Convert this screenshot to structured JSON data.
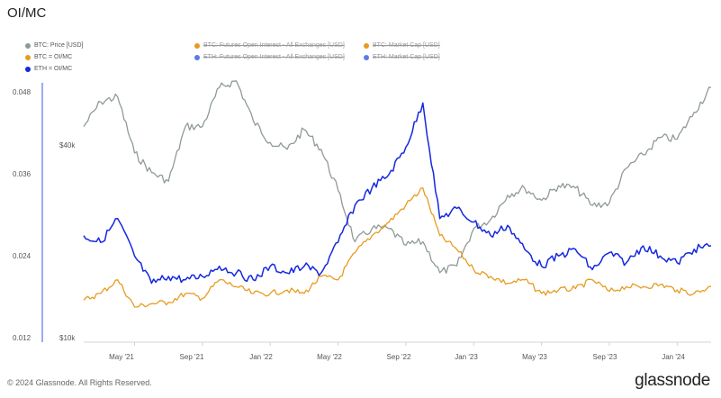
{
  "title": "OI/MC",
  "legend": [
    {
      "label": "BTC: Price [USD]",
      "color": "#8f9a98",
      "active": true
    },
    {
      "label": "BTC = OI/MC",
      "color": "#e69c1e",
      "active": true
    },
    {
      "label": "ETH = OI/MC",
      "color": "#1428e0",
      "active": true
    },
    {
      "label": "BTC: Futures Open Interest - All Exchanges [USD]",
      "color": "#e69c1e",
      "active": false
    },
    {
      "label": "ETH: Futures Open Interest - All Exchanges [USD]",
      "color": "#5b7be8",
      "active": false
    },
    {
      "label": "BTC: Market Cap [USD]",
      "color": "#e69c1e",
      "active": false
    },
    {
      "label": "ETH: Market Cap [USD]",
      "color": "#5b7be8",
      "active": false
    }
  ],
  "footer": "© 2024 Glassnode. All Rights Reserved.",
  "brand": "glassnode",
  "chart_data": {
    "type": "line",
    "x_ticks": [
      "May '21",
      "Sep '21",
      "Jan '22",
      "May '22",
      "Sep '22",
      "Jan '23",
      "May '23",
      "Sep '23",
      "Jan '24"
    ],
    "left_axis": {
      "ticks": [
        "0.048",
        "0.036",
        "0.024",
        "0.012"
      ],
      "range": [
        0.012,
        0.048
      ]
    },
    "right_axis": {
      "ticks": [
        "$40k",
        "$10k"
      ],
      "scale": "log"
    },
    "x_range": [
      "2021-02",
      "2024-03"
    ],
    "series": [
      {
        "name": "BTC: Price [USD]",
        "axis": "right",
        "color": "#8f9a98",
        "points": [
          [
            "2021-02",
            46000
          ],
          [
            "2021-03",
            55000
          ],
          [
            "2021-04",
            57000
          ],
          [
            "2021-05",
            38000
          ],
          [
            "2021-06",
            33000
          ],
          [
            "2021-07",
            31000
          ],
          [
            "2021-08",
            46000
          ],
          [
            "2021-09",
            46000
          ],
          [
            "2021-10",
            61000
          ],
          [
            "2021-11",
            64000
          ],
          [
            "2021-12",
            48000
          ],
          [
            "2022-01",
            41000
          ],
          [
            "2022-02",
            39000
          ],
          [
            "2022-03",
            45000
          ],
          [
            "2022-04",
            39000
          ],
          [
            "2022-05",
            29000
          ],
          [
            "2022-06",
            20000
          ],
          [
            "2022-07",
            22000
          ],
          [
            "2022-08",
            22000
          ],
          [
            "2022-09",
            19500
          ],
          [
            "2022-10",
            20000
          ],
          [
            "2022-11",
            16000
          ],
          [
            "2022-12",
            16800
          ],
          [
            "2023-01",
            22000
          ],
          [
            "2023-02",
            23500
          ],
          [
            "2023-03",
            28000
          ],
          [
            "2023-04",
            29500
          ],
          [
            "2023-05",
            27000
          ],
          [
            "2023-06",
            30000
          ],
          [
            "2023-07",
            29500
          ],
          [
            "2023-08",
            26000
          ],
          [
            "2023-09",
            26500
          ],
          [
            "2023-10",
            34000
          ],
          [
            "2023-11",
            37500
          ],
          [
            "2023-12",
            42500
          ],
          [
            "2024-01",
            42000
          ],
          [
            "2024-02",
            51000
          ],
          [
            "2024-03",
            61000
          ]
        ]
      },
      {
        "name": "BTC = OI/MC",
        "axis": "left",
        "color": "#e69c1e",
        "points": [
          [
            "2021-02",
            0.0175
          ],
          [
            "2021-03",
            0.0185
          ],
          [
            "2021-04",
            0.0205
          ],
          [
            "2021-05",
            0.0165
          ],
          [
            "2021-06",
            0.017
          ],
          [
            "2021-07",
            0.0172
          ],
          [
            "2021-08",
            0.0185
          ],
          [
            "2021-09",
            0.0178
          ],
          [
            "2021-10",
            0.0205
          ],
          [
            "2021-11",
            0.0195
          ],
          [
            "2021-12",
            0.0185
          ],
          [
            "2022-01",
            0.0185
          ],
          [
            "2022-02",
            0.019
          ],
          [
            "2022-03",
            0.0185
          ],
          [
            "2022-04",
            0.021
          ],
          [
            "2022-05",
            0.0205
          ],
          [
            "2022-06",
            0.0245
          ],
          [
            "2022-07",
            0.027
          ],
          [
            "2022-08",
            0.029
          ],
          [
            "2022-09",
            0.0315
          ],
          [
            "2022-10",
            0.034
          ],
          [
            "2022-11",
            0.027
          ],
          [
            "2022-12",
            0.025
          ],
          [
            "2023-01",
            0.022
          ],
          [
            "2023-02",
            0.021
          ],
          [
            "2023-03",
            0.02
          ],
          [
            "2023-04",
            0.0205
          ],
          [
            "2023-05",
            0.0185
          ],
          [
            "2023-06",
            0.019
          ],
          [
            "2023-07",
            0.0192
          ],
          [
            "2023-08",
            0.0205
          ],
          [
            "2023-09",
            0.0188
          ],
          [
            "2023-10",
            0.0195
          ],
          [
            "2023-11",
            0.0195
          ],
          [
            "2023-12",
            0.0198
          ],
          [
            "2024-01",
            0.019
          ],
          [
            "2024-02",
            0.0185
          ],
          [
            "2024-03",
            0.0195
          ]
        ]
      },
      {
        "name": "ETH = OI/MC",
        "axis": "left",
        "color": "#1428e0",
        "points": [
          [
            "2021-02",
            0.027
          ],
          [
            "2021-03",
            0.026
          ],
          [
            "2021-04",
            0.0295
          ],
          [
            "2021-05",
            0.024
          ],
          [
            "2021-06",
            0.02
          ],
          [
            "2021-07",
            0.021
          ],
          [
            "2021-08",
            0.0205
          ],
          [
            "2021-09",
            0.021
          ],
          [
            "2021-10",
            0.0225
          ],
          [
            "2021-11",
            0.0215
          ],
          [
            "2021-12",
            0.0205
          ],
          [
            "2022-01",
            0.0225
          ],
          [
            "2022-02",
            0.0215
          ],
          [
            "2022-03",
            0.0225
          ],
          [
            "2022-04",
            0.0215
          ],
          [
            "2022-05",
            0.026
          ],
          [
            "2022-06",
            0.0315
          ],
          [
            "2022-07",
            0.034
          ],
          [
            "2022-08",
            0.036
          ],
          [
            "2022-09",
            0.04
          ],
          [
            "2022-10",
            0.0465
          ],
          [
            "2022-11",
            0.0295
          ],
          [
            "2022-12",
            0.031
          ],
          [
            "2023-01",
            0.029
          ],
          [
            "2023-02",
            0.027
          ],
          [
            "2023-03",
            0.0285
          ],
          [
            "2023-04",
            0.025
          ],
          [
            "2023-05",
            0.0225
          ],
          [
            "2023-06",
            0.024
          ],
          [
            "2023-07",
            0.025
          ],
          [
            "2023-08",
            0.022
          ],
          [
            "2023-09",
            0.0245
          ],
          [
            "2023-10",
            0.023
          ],
          [
            "2023-11",
            0.0255
          ],
          [
            "2023-12",
            0.024
          ],
          [
            "2024-01",
            0.023
          ],
          [
            "2024-02",
            0.025
          ],
          [
            "2024-03",
            0.0255
          ]
        ]
      }
    ]
  }
}
